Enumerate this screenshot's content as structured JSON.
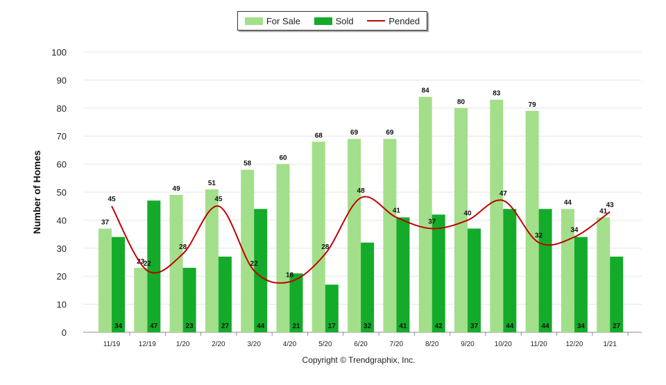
{
  "legend": {
    "for_sale": "For Sale",
    "sold": "Sold",
    "pended": "Pended"
  },
  "footer": "Copyright © Trendgraphix, Inc.",
  "colors": {
    "for_sale": "#a3df8a",
    "sold": "#14ab2a",
    "pended": "#c00000",
    "grid": "#e6e6e6",
    "axis": "#888888"
  },
  "chart_data": {
    "type": "bar",
    "ylabel": "Number of Homes",
    "xlabel": "",
    "ylim": [
      0,
      100
    ],
    "yticks": [
      0,
      10,
      20,
      30,
      40,
      50,
      60,
      70,
      80,
      90,
      100
    ],
    "grid": true,
    "legend_position": "top-center",
    "categories": [
      "11/19",
      "12/19",
      "1/20",
      "2/20",
      "3/20",
      "4/20",
      "5/20",
      "6/20",
      "7/20",
      "8/20",
      "9/20",
      "10/20",
      "11/20",
      "12/20",
      "1/21"
    ],
    "series": [
      {
        "name": "For Sale",
        "type": "bar",
        "values": [
          37,
          23,
          49,
          51,
          58,
          60,
          68,
          69,
          69,
          84,
          80,
          83,
          79,
          44,
          41
        ]
      },
      {
        "name": "Sold",
        "type": "bar",
        "values": [
          34,
          47,
          23,
          27,
          44,
          21,
          17,
          32,
          41,
          42,
          37,
          44,
          44,
          34,
          27
        ]
      },
      {
        "name": "Pended",
        "type": "line",
        "values": [
          45,
          22,
          28,
          45,
          22,
          18,
          28,
          48,
          41,
          37,
          40,
          47,
          32,
          34,
          43
        ]
      }
    ]
  }
}
